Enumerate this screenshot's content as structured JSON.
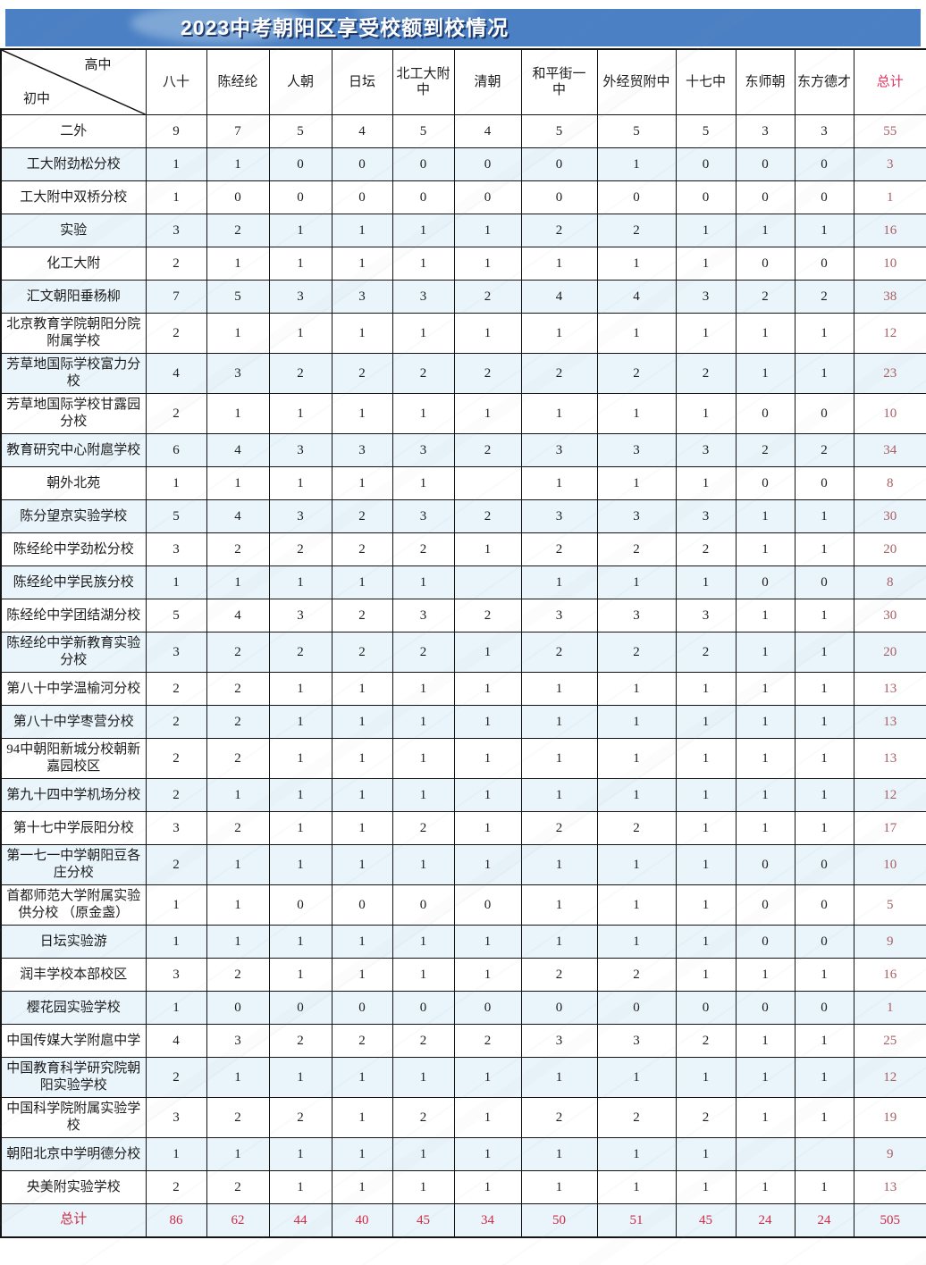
{
  "title": "2023中考朝阳区享受校额到校情况",
  "corner": {
    "high_school": "高中",
    "middle_school": "初中"
  },
  "columns": [
    "八十",
    "陈经纶",
    "人朝",
    "日坛",
    "北工大附\n中",
    "清朝",
    "和平街一\n中",
    "外经贸附中",
    "十七中",
    "东师朝",
    "东方德才",
    "总计"
  ],
  "rows": [
    {
      "name": "二外",
      "values": [
        9,
        7,
        5,
        4,
        5,
        4,
        5,
        5,
        5,
        3,
        3
      ],
      "total": 55
    },
    {
      "name": "工大附劲松分校",
      "values": [
        1,
        1,
        0,
        0,
        0,
        0,
        0,
        1,
        0,
        0,
        0
      ],
      "total": 3
    },
    {
      "name": "工大附中双桥分校",
      "values": [
        1,
        0,
        0,
        0,
        0,
        0,
        0,
        0,
        0,
        0,
        0
      ],
      "total": 1
    },
    {
      "name": "实验",
      "values": [
        3,
        2,
        1,
        1,
        1,
        1,
        2,
        2,
        1,
        1,
        1
      ],
      "total": 16
    },
    {
      "name": "化工大附",
      "values": [
        2,
        1,
        1,
        1,
        1,
        1,
        1,
        1,
        1,
        0,
        0
      ],
      "total": 10
    },
    {
      "name": "汇文朝阳垂杨柳",
      "values": [
        7,
        5,
        3,
        3,
        3,
        2,
        4,
        4,
        3,
        2,
        2
      ],
      "total": 38
    },
    {
      "name": "北京教育学院朝阳分院附属学校",
      "values": [
        2,
        1,
        1,
        1,
        1,
        1,
        1,
        1,
        1,
        1,
        1
      ],
      "total": 12
    },
    {
      "name": "芳草地国际学校富力分校",
      "values": [
        4,
        3,
        2,
        2,
        2,
        2,
        2,
        2,
        2,
        1,
        1
      ],
      "total": 23
    },
    {
      "name": "芳草地国际学校甘露园分校",
      "values": [
        2,
        1,
        1,
        1,
        1,
        1,
        1,
        1,
        1,
        0,
        0
      ],
      "total": 10
    },
    {
      "name": "教育研究中心附扈学校",
      "values": [
        6,
        4,
        3,
        3,
        3,
        2,
        3,
        3,
        3,
        2,
        2
      ],
      "total": 34
    },
    {
      "name": "朝外北苑",
      "values": [
        1,
        1,
        1,
        1,
        1,
        "",
        1,
        1,
        1,
        0,
        0
      ],
      "total": 8
    },
    {
      "name": "陈分望京实验学校",
      "values": [
        5,
        4,
        3,
        2,
        3,
        2,
        3,
        3,
        3,
        1,
        1
      ],
      "total": 30
    },
    {
      "name": "陈经纶中学劲松分校",
      "values": [
        3,
        2,
        2,
        2,
        2,
        1,
        2,
        2,
        2,
        1,
        1
      ],
      "total": 20
    },
    {
      "name": "陈经纶中学民族分校",
      "values": [
        1,
        1,
        1,
        1,
        1,
        "",
        1,
        1,
        1,
        0,
        0
      ],
      "total": 8
    },
    {
      "name": "陈经纶中学团结湖分校",
      "values": [
        5,
        4,
        3,
        2,
        3,
        2,
        3,
        3,
        3,
        1,
        1
      ],
      "total": 30
    },
    {
      "name": "陈经纶中学新教育实验分校",
      "values": [
        3,
        2,
        2,
        2,
        2,
        1,
        2,
        2,
        2,
        1,
        1
      ],
      "total": 20
    },
    {
      "name": "第八十中学温榆河分校",
      "values": [
        2,
        2,
        1,
        1,
        1,
        1,
        1,
        1,
        1,
        1,
        1
      ],
      "total": 13
    },
    {
      "name": "第八十中学枣营分校",
      "values": [
        2,
        2,
        1,
        1,
        1,
        1,
        1,
        1,
        1,
        1,
        1
      ],
      "total": 13
    },
    {
      "name": "94中朝阳新城分校朝新嘉园校区",
      "values": [
        2,
        2,
        1,
        1,
        1,
        1,
        1,
        1,
        1,
        1,
        1
      ],
      "total": 13
    },
    {
      "name": "第九十四中学机场分校",
      "values": [
        2,
        1,
        1,
        1,
        1,
        1,
        1,
        1,
        1,
        1,
        1
      ],
      "total": 12
    },
    {
      "name": "第十七中学辰阳分校",
      "values": [
        3,
        2,
        1,
        1,
        2,
        1,
        2,
        2,
        1,
        1,
        1
      ],
      "total": 17
    },
    {
      "name": "第一七一中学朝阳豆各庄分校",
      "values": [
        2,
        1,
        1,
        1,
        1,
        1,
        1,
        1,
        1,
        0,
        0
      ],
      "total": 10
    },
    {
      "name": "首都师范大学附属实验供分校 （原金盏）",
      "values": [
        1,
        1,
        0,
        0,
        0,
        0,
        1,
        1,
        1,
        0,
        0
      ],
      "total": 5
    },
    {
      "name": "日坛实验游",
      "values": [
        1,
        1,
        1,
        1,
        1,
        1,
        1,
        1,
        1,
        0,
        0
      ],
      "total": 9
    },
    {
      "name": "润丰学校本部校区",
      "values": [
        3,
        2,
        1,
        1,
        1,
        1,
        2,
        2,
        1,
        1,
        1
      ],
      "total": 16
    },
    {
      "name": "樱花园实验学校",
      "values": [
        1,
        0,
        0,
        0,
        0,
        0,
        0,
        0,
        0,
        0,
        0
      ],
      "total": 1
    },
    {
      "name": "中国传媒大学附扈中学",
      "values": [
        4,
        3,
        2,
        2,
        2,
        2,
        3,
        3,
        2,
        1,
        1
      ],
      "total": 25
    },
    {
      "name": "中国教育科学研究院朝阳实验学校",
      "values": [
        2,
        1,
        1,
        1,
        1,
        1,
        1,
        1,
        1,
        1,
        1
      ],
      "total": 12
    },
    {
      "name": "中国科学院附属实验学校",
      "values": [
        3,
        2,
        2,
        1,
        2,
        1,
        2,
        2,
        2,
        1,
        1
      ],
      "total": 19
    },
    {
      "name": "朝阳北京中学明德分校",
      "values": [
        1,
        1,
        1,
        1,
        1,
        1,
        1,
        1,
        1,
        "",
        ""
      ],
      "total": 9
    },
    {
      "name": "央美附实验学校",
      "values": [
        2,
        2,
        1,
        1,
        1,
        1,
        1,
        1,
        1,
        1,
        1
      ],
      "total": 13
    }
  ],
  "footer": {
    "name": "总计",
    "values": [
      86,
      62,
      44,
      40,
      45,
      34,
      50,
      51,
      45,
      24,
      24
    ],
    "total": 505
  },
  "colors": {
    "banner_blue": "#4b80c4",
    "alt_row_blue": "#e9f4fb",
    "header_total_red": "#e0335e",
    "total_column_red": "#a85f63",
    "total_row_red": "#ce2b44"
  }
}
